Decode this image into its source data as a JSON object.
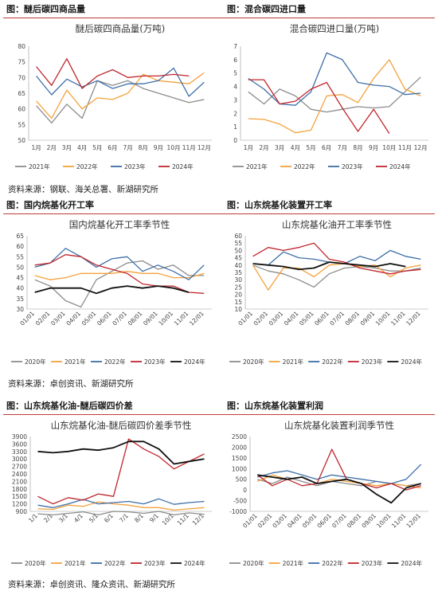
{
  "sections": [
    {
      "left_title": "图：醚后碳四商品量",
      "right_title": "图：混合碳四进口量",
      "source": "资料来源：钢联、海关总署、新湖研究所"
    },
    {
      "left_title": "图：国内烷基化开工率",
      "right_title": "图：山东烷基化装置开工率",
      "source": "资料来源：卓创资讯、新湖研究所"
    },
    {
      "left_title": "图：山东烷基化油-醚后碳四价差",
      "right_title": "图：山东烷基化装置利润",
      "source": "资料来源：卓创资讯、隆众资讯、新湖研究所"
    }
  ],
  "colors": {
    "2020": "#8c8c8c",
    "2021": "#f4a23c",
    "2022": "#3d6ea8",
    "2023": "#c0262d",
    "2024": "#111111",
    "rule": "#c33b3b"
  },
  "chart_data": [
    {
      "id": "ether-c4",
      "type": "line",
      "title": "醚后碳四商品量(万吨)",
      "categories": [
        "1月",
        "2月",
        "3月",
        "4月",
        "5月",
        "6月",
        "7月",
        "8月",
        "9月",
        "10月",
        "11月",
        "12月"
      ],
      "ylim": [
        50,
        80
      ],
      "yticks": [
        50,
        55,
        60,
        65,
        70,
        75,
        80
      ],
      "series": [
        {
          "name": "2021年",
          "color": "#8c8c8c",
          "values": [
            61,
            55.5,
            61.5,
            57,
            69,
            67.5,
            69,
            66.5,
            65,
            63.5,
            62,
            63
          ]
        },
        {
          "name": "2022年",
          "color": "#f4a23c",
          "values": [
            62.5,
            57,
            66,
            60,
            63.5,
            63,
            65,
            71,
            69,
            68.5,
            68,
            71.5
          ]
        },
        {
          "name": "2023年",
          "color": "#3d6ea8",
          "values": [
            70.5,
            64.5,
            69.5,
            67,
            69,
            66.5,
            68,
            68,
            69,
            73,
            64,
            68.5
          ]
        },
        {
          "name": "2024年",
          "color": "#c0262d",
          "values": [
            73.5,
            67.5,
            76,
            66.5,
            70.5,
            72.5,
            70,
            70.5,
            70.5,
            71,
            70.5,
            null
          ]
        }
      ]
    },
    {
      "id": "mixed-c4-import",
      "type": "line",
      "title": "混合碳四进口量(万吨)",
      "categories": [
        "1月",
        "2月",
        "3月",
        "4月",
        "5月",
        "6月",
        "7月",
        "8月",
        "9月",
        "10月",
        "11月",
        "12月"
      ],
      "ylim": [
        0,
        7
      ],
      "yticks": [
        0,
        1,
        2,
        3,
        4,
        5,
        6,
        7
      ],
      "series": [
        {
          "name": "2021年",
          "color": "#8c8c8c",
          "values": [
            3.6,
            2.7,
            3.8,
            3.3,
            2.3,
            2.1,
            2.3,
            2.5,
            2.4,
            2.5,
            3.6,
            4.7
          ]
        },
        {
          "name": "2022年",
          "color": "#f4a23c",
          "values": [
            1.6,
            1.55,
            1.2,
            0.55,
            0.75,
            3.3,
            3.4,
            2.8,
            4.6,
            6.0,
            3.8,
            3.3
          ]
        },
        {
          "name": "2023年",
          "color": "#3d6ea8",
          "values": [
            4.6,
            3.8,
            2.7,
            2.6,
            3.6,
            6.5,
            6.0,
            4.3,
            4.1,
            4.0,
            3.4,
            3.5
          ]
        },
        {
          "name": "2024年",
          "color": "#c0262d",
          "values": [
            4.5,
            4.5,
            2.7,
            2.9,
            3.8,
            4.3,
            2.4,
            0.65,
            2.3,
            0.5,
            null,
            null
          ]
        }
      ]
    },
    {
      "id": "domestic-alkylation-rate",
      "type": "line",
      "title": "国内烷基化开工率季节性",
      "categories": [
        "01/01",
        "02/01",
        "03/01",
        "04/01",
        "05/01",
        "06/01",
        "07/01",
        "08/01",
        "09/01",
        "10/01",
        "11/01",
        "12/01"
      ],
      "ylim": [
        30,
        65
      ],
      "yticks": [
        30,
        35,
        40,
        45,
        50,
        55,
        60,
        65
      ],
      "series": [
        {
          "name": "2020年",
          "color": "#8c8c8c",
          "values": [
            44,
            41,
            34,
            31,
            44,
            48,
            52,
            53,
            49,
            51,
            46,
            46
          ]
        },
        {
          "name": "2021年",
          "color": "#f4a23c",
          "values": [
            46,
            44,
            45,
            47,
            47,
            47,
            48,
            47,
            47,
            45,
            45,
            47
          ]
        },
        {
          "name": "2022年",
          "color": "#3d6ea8",
          "values": [
            50,
            52,
            59,
            55,
            50,
            54,
            55,
            48,
            51,
            48,
            44,
            51
          ]
        },
        {
          "name": "2023年",
          "color": "#c0262d",
          "values": [
            51,
            52,
            56,
            55,
            51,
            49,
            47,
            42,
            41,
            41,
            38,
            37.5
          ]
        },
        {
          "name": "2024年",
          "color": "#111111",
          "values": [
            38,
            40,
            40,
            40,
            37.5,
            40,
            41,
            40,
            41,
            40,
            38,
            null
          ]
        }
      ]
    },
    {
      "id": "shandong-alkylation-rate",
      "type": "line",
      "title": "山东烷基化油开工率季节性",
      "categories": [
        "01/01",
        "02/01",
        "03/01",
        "04/01",
        "05/01",
        "06/01",
        "07/01",
        "08/01",
        "09/01",
        "10/01",
        "11/01",
        "12/01"
      ],
      "ylim": [
        10,
        60
      ],
      "yticks": [
        10,
        15,
        20,
        25,
        30,
        35,
        40,
        45,
        50,
        55,
        60
      ],
      "series": [
        {
          "name": "2020年",
          "color": "#8c8c8c",
          "values": [
            40,
            36,
            34,
            30,
            25,
            34,
            38,
            39,
            38,
            36,
            36,
            38
          ]
        },
        {
          "name": "2021年",
          "color": "#f4a23c",
          "values": [
            40,
            23,
            38,
            38,
            32,
            40,
            41,
            39,
            40,
            32,
            38,
            40
          ]
        },
        {
          "name": "2022年",
          "color": "#3d6ea8",
          "values": [
            41,
            40,
            49,
            45,
            44,
            42,
            41,
            46,
            43,
            50,
            46,
            44
          ]
        },
        {
          "name": "2023年",
          "color": "#c0262d",
          "values": [
            46,
            52,
            50,
            52,
            55,
            44,
            42,
            38,
            36,
            34,
            36,
            37
          ]
        },
        {
          "name": "2024年",
          "color": "#111111",
          "values": [
            41,
            40,
            39,
            37,
            38,
            42,
            41,
            40,
            39,
            41,
            39,
            null
          ]
        }
      ]
    },
    {
      "id": "alkylate-c4-spread",
      "type": "line",
      "title": "山东烷基化油-醚后碳四价差季节性",
      "categories": [
        "1/1",
        "2/1",
        "3/1",
        "4/1",
        "5/1",
        "6/1",
        "7/1",
        "8/1",
        "9/1",
        "10/1",
        "11/1",
        "12/1"
      ],
      "ylim": [
        900,
        3900
      ],
      "yticks": [
        900,
        1200,
        1500,
        1800,
        2100,
        2400,
        2700,
        3000,
        3300,
        3600,
        3900
      ],
      "series": [
        {
          "name": "2020年",
          "color": "#8c8c8c",
          "values": [
            800,
            760,
            820,
            880,
            760,
            900,
            880,
            820,
            900,
            760,
            840,
            780
          ]
        },
        {
          "name": "2021年",
          "color": "#f4a23c",
          "values": [
            1000,
            980,
            1150,
            1100,
            1280,
            1200,
            1150,
            1050,
            1050,
            950,
            1000,
            1050
          ]
        },
        {
          "name": "2022年",
          "color": "#3d6ea8",
          "values": [
            1150,
            1050,
            1200,
            1380,
            1200,
            1250,
            1300,
            1200,
            1400,
            1180,
            1250,
            1300
          ]
        },
        {
          "name": "2023年",
          "color": "#c0262d",
          "values": [
            1500,
            1200,
            1450,
            1350,
            1600,
            1500,
            3800,
            3400,
            3100,
            2600,
            2900,
            3200
          ]
        },
        {
          "name": "2024年",
          "color": "#111111",
          "values": [
            3300,
            3250,
            3300,
            3400,
            3350,
            3450,
            3700,
            3700,
            3400,
            2800,
            2900,
            3000
          ]
        }
      ]
    },
    {
      "id": "alkylation-profit",
      "type": "line",
      "title": "山东烷基化装置利润季节性",
      "categories": [
        "01/01",
        "02/01",
        "03/01",
        "04/01",
        "05/01",
        "06/01",
        "07/01",
        "08/01",
        "09/01",
        "10/01",
        "11/01",
        "12/01"
      ],
      "ylim": [
        -1000,
        2500
      ],
      "yticks": [
        -1000,
        -500,
        0,
        500,
        1000,
        1500,
        2000,
        2500
      ],
      "series": [
        {
          "name": "2020年",
          "color": "#8c8c8c",
          "values": [
            500,
            300,
            600,
            400,
            200,
            400,
            300,
            200,
            400,
            300,
            200,
            300
          ]
        },
        {
          "name": "2021年",
          "color": "#f4a23c",
          "values": [
            400,
            700,
            500,
            600,
            300,
            500,
            400,
            300,
            200,
            300,
            200,
            100
          ]
        },
        {
          "name": "2022年",
          "color": "#3d6ea8",
          "values": [
            600,
            800,
            900,
            700,
            500,
            700,
            600,
            500,
            400,
            300,
            500,
            1200
          ]
        },
        {
          "name": "2023年",
          "color": "#c0262d",
          "values": [
            700,
            200,
            500,
            200,
            300,
            1900,
            500,
            300,
            100,
            300,
            0,
            200
          ]
        },
        {
          "name": "2024年",
          "color": "#111111",
          "values": [
            700,
            600,
            500,
            600,
            300,
            400,
            500,
            300,
            -200,
            -600,
            100,
            300
          ]
        }
      ]
    }
  ]
}
